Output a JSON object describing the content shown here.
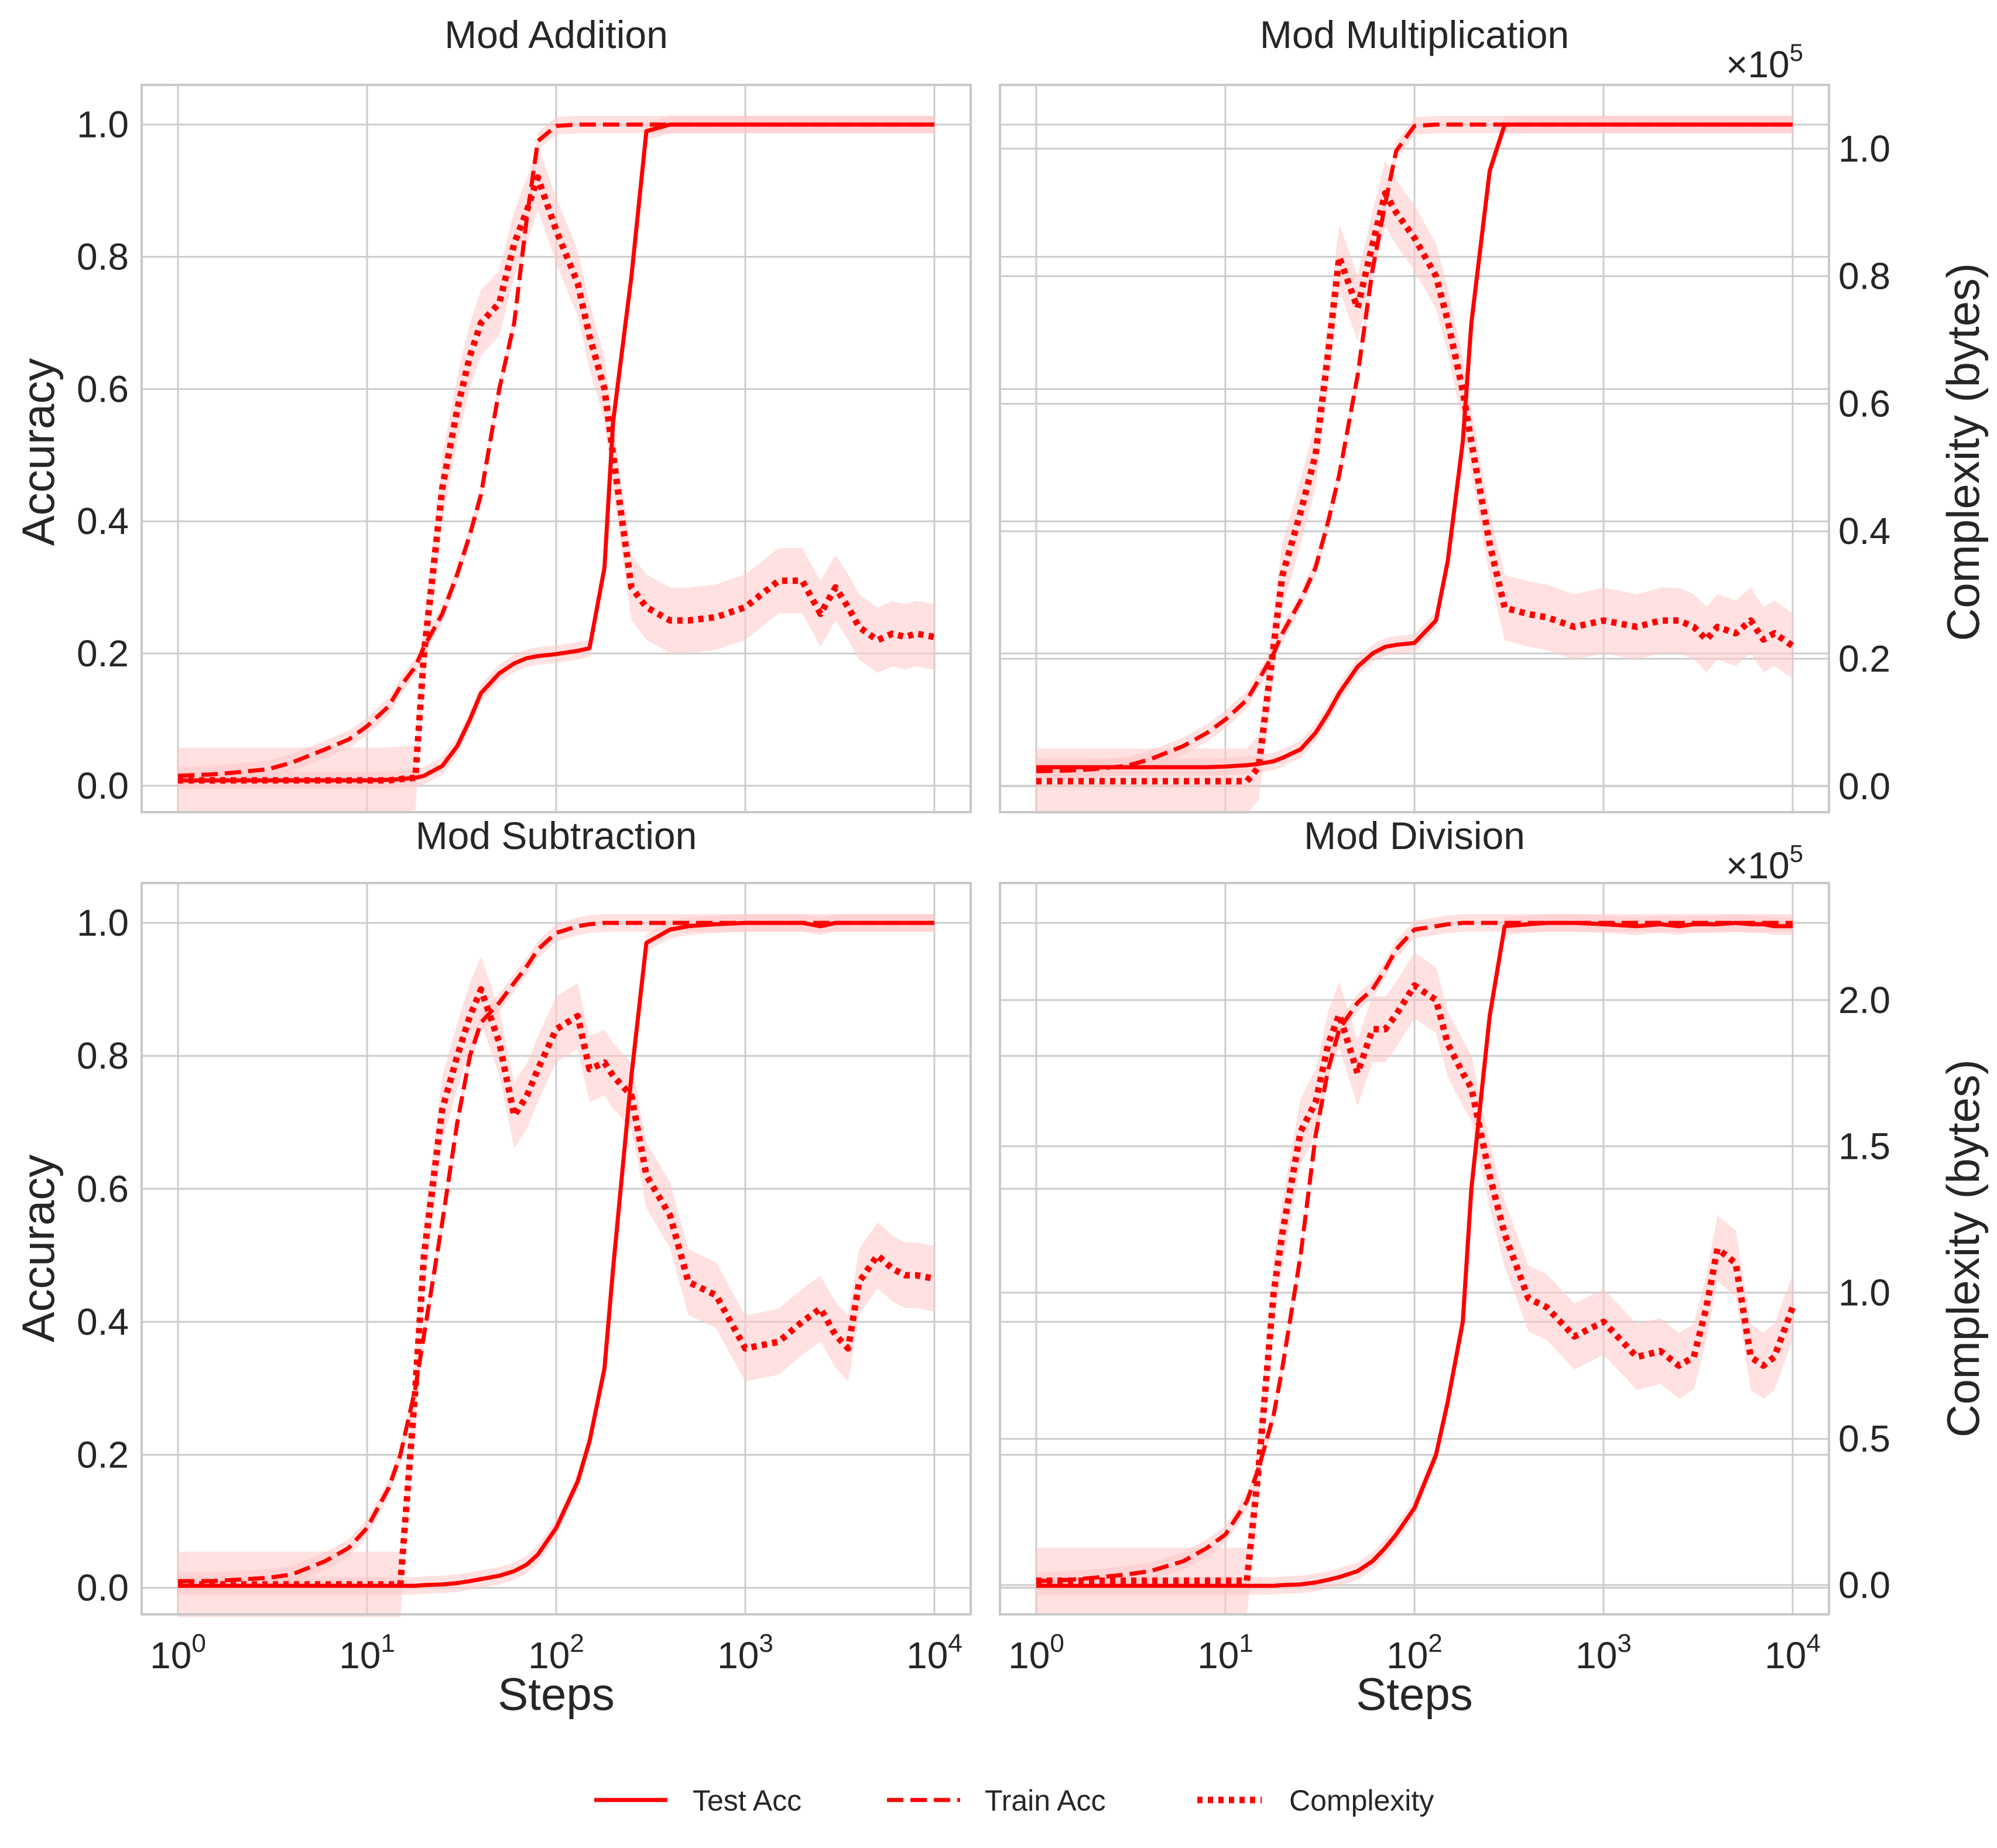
{
  "colors": {
    "line": "#ff0000",
    "band": "#ffc8c8",
    "grid": "#cccccc",
    "frame": "#c8c8c8",
    "text": "#262626"
  },
  "labels": {
    "ylabel": "Accuracy",
    "xlabel": "Steps",
    "y2label": "Complexity (bytes)",
    "multiplier": "×10",
    "multiplier_exp": "5"
  },
  "legend": {
    "test": "Test Acc",
    "train": "Train Acc",
    "complexity": "Complexity"
  },
  "chart_data": [
    {
      "type": "line",
      "title": "Mod Addition",
      "xscale": "log",
      "xlim": [
        1,
        10000
      ],
      "ylim": [
        -0.04,
        1.06
      ],
      "y2lim": null,
      "y2ticks": [],
      "x": [
        1,
        1.5,
        2,
        3,
        4,
        6,
        8,
        10,
        13,
        15,
        18,
        20,
        25,
        30,
        35,
        40,
        50,
        60,
        70,
        80,
        100,
        130,
        150,
        180,
        200,
        250,
        300,
        400,
        500,
        700,
        1000,
        1500,
        2000,
        2500,
        3000,
        3500,
        4000,
        5000,
        6000,
        7000,
        8000,
        10000
      ],
      "series": [
        {
          "name": "Test Acc",
          "style": "solid",
          "values": [
            0.008,
            0.008,
            0.008,
            0.008,
            0.008,
            0.008,
            0.008,
            0.008,
            0.009,
            0.01,
            0.012,
            0.015,
            0.03,
            0.06,
            0.1,
            0.14,
            0.17,
            0.185,
            0.193,
            0.196,
            0.199,
            0.204,
            0.208,
            0.33,
            0.55,
            0.77,
            0.99,
            1.0,
            1.0,
            1.0,
            1.0,
            1.0,
            1.0,
            1.0,
            1.0,
            1.0,
            1.0,
            1.0,
            1.0,
            1.0,
            1.0,
            1.0
          ]
        },
        {
          "name": "Train Acc",
          "style": "dashed",
          "values": [
            0.015,
            0.017,
            0.02,
            0.025,
            0.035,
            0.055,
            0.07,
            0.09,
            0.12,
            0.15,
            0.18,
            0.21,
            0.26,
            0.32,
            0.38,
            0.44,
            0.6,
            0.7,
            0.86,
            0.975,
            0.998,
            1.0,
            1.0,
            1.0,
            1.0,
            1.0,
            1.0,
            1.0,
            1.0,
            1.0,
            1.0,
            1.0,
            1.0,
            1.0,
            1.0,
            1.0,
            1.0,
            1.0,
            1.0,
            1.0,
            1.0,
            1.0
          ]
        },
        {
          "name": "Complexity",
          "style": "dotted",
          "values": [
            0.008,
            0.008,
            0.008,
            0.008,
            0.008,
            0.008,
            0.008,
            0.008,
            0.008,
            0.01,
            0.012,
            0.2,
            0.45,
            0.57,
            0.65,
            0.7,
            0.73,
            0.82,
            0.87,
            0.92,
            0.84,
            0.76,
            0.68,
            0.6,
            0.5,
            0.3,
            0.27,
            0.25,
            0.25,
            0.255,
            0.27,
            0.31,
            0.31,
            0.26,
            0.3,
            0.27,
            0.24,
            0.22,
            0.23,
            0.225,
            0.23,
            0.225
          ]
        }
      ]
    },
    {
      "type": "line",
      "title": "Mod Multiplication",
      "xscale": "log",
      "xlim": [
        1,
        10000
      ],
      "ylim": [
        -0.04,
        1.06
      ],
      "y2lim": [
        -4060,
        110000
      ],
      "y2ticks": [
        0,
        20000,
        40000,
        60000,
        80000,
        100000
      ],
      "y2ticklabels": [
        "0.0",
        "0.2",
        "0.4",
        "0.6",
        "0.8",
        "1.0"
      ],
      "x": [
        1,
        1.5,
        2,
        3,
        4,
        6,
        8,
        10,
        13,
        15,
        18,
        20,
        25,
        30,
        35,
        40,
        50,
        60,
        70,
        80,
        100,
        130,
        150,
        180,
        200,
        250,
        300,
        400,
        500,
        700,
        1000,
        1500,
        2000,
        2500,
        3000,
        3500,
        4000,
        5000,
        6000,
        7000,
        8000,
        10000
      ],
      "series": [
        {
          "name": "Test Acc",
          "style": "solid",
          "values": [
            0.028,
            0.028,
            0.028,
            0.028,
            0.028,
            0.028,
            0.028,
            0.029,
            0.031,
            0.033,
            0.037,
            0.042,
            0.055,
            0.08,
            0.11,
            0.14,
            0.18,
            0.2,
            0.21,
            0.213,
            0.216,
            0.25,
            0.34,
            0.52,
            0.7,
            0.93,
            1.0,
            1.0,
            1.0,
            1.0,
            1.0,
            1.0,
            1.0,
            1.0,
            1.0,
            1.0,
            1.0,
            1.0,
            1.0,
            1.0,
            1.0,
            1.0
          ]
        },
        {
          "name": "Train Acc",
          "style": "dashed",
          "values": [
            0.022,
            0.023,
            0.025,
            0.03,
            0.04,
            0.06,
            0.08,
            0.1,
            0.13,
            0.16,
            0.2,
            0.23,
            0.28,
            0.33,
            0.4,
            0.47,
            0.62,
            0.78,
            0.88,
            0.96,
            0.998,
            1.0,
            1.0,
            1.0,
            1.0,
            1.0,
            1.0,
            1.0,
            1.0,
            1.0,
            1.0,
            1.0,
            1.0,
            1.0,
            1.0,
            1.0,
            1.0,
            1.0,
            1.0,
            1.0,
            1.0,
            1.0
          ]
        },
        {
          "name": "Complexity",
          "style": "dotted",
          "values": [
            800,
            800,
            800,
            800,
            800,
            800,
            800,
            800,
            800,
            3000,
            22000,
            33000,
            43000,
            52000,
            68000,
            83000,
            75000,
            85000,
            93000,
            90000,
            86000,
            80000,
            73000,
            62000,
            54000,
            38000,
            28000,
            27000,
            26500,
            25000,
            26000,
            25000,
            26000,
            26000,
            25000,
            23000,
            25000,
            24000,
            26000,
            23000,
            24000,
            22000
          ]
        }
      ]
    },
    {
      "type": "line",
      "title": "Mod Subtraction",
      "xscale": "log",
      "xlim": [
        1,
        10000
      ],
      "ylim": [
        -0.04,
        1.06
      ],
      "y2lim": null,
      "y2ticks": [],
      "x": [
        1,
        1.5,
        2,
        3,
        4,
        6,
        8,
        10,
        13,
        15,
        18,
        20,
        25,
        30,
        35,
        40,
        50,
        60,
        70,
        80,
        100,
        130,
        150,
        180,
        200,
        250,
        300,
        400,
        500,
        700,
        1000,
        1500,
        2000,
        2500,
        3000,
        3500,
        4000,
        5000,
        6000,
        7000,
        8000,
        10000
      ],
      "series": [
        {
          "name": "Test Acc",
          "style": "solid",
          "values": [
            0.003,
            0.003,
            0.003,
            0.003,
            0.003,
            0.003,
            0.003,
            0.003,
            0.003,
            0.003,
            0.003,
            0.004,
            0.005,
            0.007,
            0.01,
            0.013,
            0.018,
            0.025,
            0.035,
            0.05,
            0.09,
            0.16,
            0.22,
            0.33,
            0.48,
            0.77,
            0.97,
            0.99,
            0.995,
            0.998,
            1.0,
            1.0,
            1.0,
            0.995,
            1.0,
            1.0,
            1.0,
            1.0,
            1.0,
            1.0,
            1.0,
            1.0
          ]
        },
        {
          "name": "Train Acc",
          "style": "dashed",
          "values": [
            0.01,
            0.01,
            0.012,
            0.015,
            0.02,
            0.04,
            0.06,
            0.09,
            0.15,
            0.2,
            0.3,
            0.38,
            0.55,
            0.7,
            0.8,
            0.85,
            0.88,
            0.91,
            0.935,
            0.96,
            0.985,
            0.995,
            0.998,
            1.0,
            1.0,
            1.0,
            1.0,
            1.0,
            1.0,
            1.0,
            1.0,
            1.0,
            1.0,
            1.0,
            1.0,
            1.0,
            1.0,
            1.0,
            1.0,
            1.0,
            1.0,
            1.0
          ]
        },
        {
          "name": "Complexity",
          "style": "dotted",
          "values": [
            0.005,
            0.005,
            0.005,
            0.005,
            0.005,
            0.005,
            0.005,
            0.005,
            0.005,
            0.005,
            0.3,
            0.5,
            0.72,
            0.8,
            0.86,
            0.9,
            0.82,
            0.71,
            0.74,
            0.78,
            0.84,
            0.86,
            0.78,
            0.79,
            0.77,
            0.74,
            0.62,
            0.56,
            0.46,
            0.44,
            0.36,
            0.37,
            0.4,
            0.42,
            0.38,
            0.36,
            0.46,
            0.5,
            0.48,
            0.47,
            0.47,
            0.465
          ]
        }
      ]
    },
    {
      "type": "line",
      "title": "Mod Division",
      "xscale": "log",
      "xlim": [
        1,
        10000
      ],
      "ylim": [
        -0.04,
        1.06
      ],
      "y2lim": [
        -10000,
        240000
      ],
      "y2ticks": [
        0,
        50000,
        100000,
        150000,
        200000
      ],
      "y2ticklabels": [
        "0.0",
        "0.5",
        "1.0",
        "1.5",
        "2.0"
      ],
      "x": [
        1,
        1.5,
        2,
        3,
        4,
        6,
        8,
        10,
        13,
        15,
        18,
        20,
        25,
        30,
        35,
        40,
        50,
        60,
        70,
        80,
        100,
        130,
        150,
        180,
        200,
        250,
        300,
        400,
        500,
        700,
        1000,
        1500,
        2000,
        2500,
        3000,
        3500,
        4000,
        5000,
        6000,
        7000,
        8000,
        10000
      ],
      "series": [
        {
          "name": "Test Acc",
          "style": "solid",
          "values": [
            0.003,
            0.003,
            0.003,
            0.003,
            0.003,
            0.003,
            0.003,
            0.003,
            0.003,
            0.003,
            0.003,
            0.004,
            0.005,
            0.008,
            0.012,
            0.016,
            0.025,
            0.04,
            0.06,
            0.08,
            0.12,
            0.2,
            0.28,
            0.4,
            0.6,
            0.86,
            0.995,
            0.998,
            1.0,
            1.0,
            0.998,
            0.995,
            0.998,
            0.995,
            0.998,
            0.998,
            0.998,
            1.0,
            0.998,
            0.998,
            0.995,
            0.995
          ]
        },
        {
          "name": "Train Acc",
          "style": "dashed",
          "values": [
            0.01,
            0.012,
            0.015,
            0.02,
            0.025,
            0.04,
            0.06,
            0.08,
            0.13,
            0.18,
            0.26,
            0.33,
            0.5,
            0.68,
            0.78,
            0.84,
            0.88,
            0.9,
            0.93,
            0.96,
            0.99,
            0.995,
            0.998,
            1.0,
            1.0,
            1.0,
            1.0,
            1.0,
            1.0,
            1.0,
            1.0,
            1.0,
            1.0,
            1.0,
            1.0,
            1.0,
            1.0,
            1.0,
            1.0,
            1.0,
            1.0,
            1.0
          ]
        },
        {
          "name": "Complexity",
          "style": "dotted",
          "values": [
            1500,
            1500,
            1500,
            1500,
            1500,
            1500,
            1500,
            1500,
            1500,
            40000,
            100000,
            120000,
            155000,
            165000,
            185000,
            195000,
            175000,
            190000,
            190000,
            195000,
            205000,
            200000,
            185000,
            175000,
            170000,
            140000,
            120000,
            98000,
            95000,
            85000,
            90000,
            78000,
            80000,
            75000,
            78000,
            95000,
            115000,
            110000,
            78000,
            75000,
            78000,
            95000
          ]
        }
      ]
    }
  ]
}
